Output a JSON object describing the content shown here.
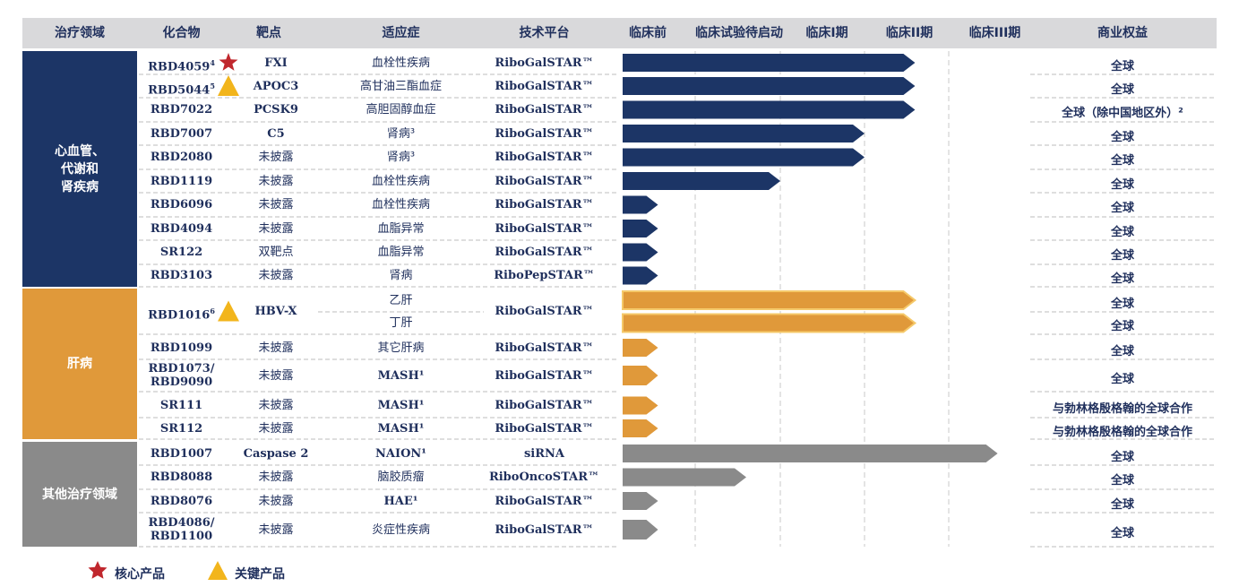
{
  "header": {
    "area": "治疗领域",
    "compound": "化合物",
    "target": "靶点",
    "indication": "适应症",
    "platform": "技术平台",
    "stages": [
      "临床前",
      "临床试验待启动",
      "临床I期",
      "临床II期",
      "临床III期"
    ],
    "rights": "商业权益"
  },
  "areas": [
    {
      "label": "心血管、\n代谢和\n肾疾病",
      "color": "#1c3566"
    },
    {
      "label": "肝病",
      "color": "#e0993a"
    },
    {
      "label": "其他治疗领域",
      "color": "#8a8a8a"
    }
  ],
  "stage_levels": {
    "preclinical": 1,
    "ind_ready": 2,
    "phase1": 3,
    "phase2": 4,
    "phase3": 5
  },
  "rows": [
    {
      "compound": "RBD4059",
      "sup": "4",
      "marker": "star",
      "target": "FXI",
      "indication": "血栓性疾病",
      "platform": "RiboGalSTAR™",
      "stage": 3.6,
      "rights": "全球",
      "area": 0
    },
    {
      "compound": "RBD5044",
      "sup": "5",
      "marker": "triangle",
      "target": "APOC3",
      "indication": "高甘油三酯血症",
      "platform": "RiboGalSTAR™",
      "stage": 3.6,
      "rights": "全球",
      "area": 0
    },
    {
      "compound": "RBD7022",
      "sup": "",
      "marker": "",
      "target": "PCSK9",
      "indication": "高胆固醇血症",
      "platform": "RiboGalSTAR™",
      "stage": 3.6,
      "rights": "全球（除中国地区外）²",
      "area": 0
    },
    {
      "compound": "RBD7007",
      "sup": "",
      "marker": "",
      "target": "C5",
      "indication": "肾病³",
      "platform": "RiboGalSTAR™",
      "stage": 3.0,
      "rights": "全球",
      "area": 0
    },
    {
      "compound": "RBD2080",
      "sup": "",
      "marker": "",
      "target": "未披露",
      "indication": "肾病³",
      "platform": "RiboGalSTAR™",
      "stage": 3.0,
      "rights": "全球",
      "area": 0
    },
    {
      "compound": "RBD1119",
      "sup": "",
      "marker": "",
      "target": "未披露",
      "indication": "血栓性疾病",
      "platform": "RiboGalSTAR™",
      "stage": 2.0,
      "rights": "全球",
      "area": 0
    },
    {
      "compound": "RBD6096",
      "sup": "",
      "marker": "",
      "target": "未披露",
      "indication": "血栓性疾病",
      "platform": "RiboGalSTAR™",
      "stage": 0.5,
      "rights": "全球",
      "area": 0
    },
    {
      "compound": "RBD4094",
      "sup": "",
      "marker": "",
      "target": "未披露",
      "indication": "血脂异常",
      "platform": "RiboGalSTAR™",
      "stage": 0.5,
      "rights": "全球",
      "area": 0
    },
    {
      "compound": "SR122",
      "sup": "",
      "marker": "",
      "target": "双靶点",
      "indication": "血脂异常",
      "platform": "RiboGalSTAR™",
      "stage": 0.5,
      "rights": "全球",
      "area": 0
    },
    {
      "compound": "RBD3103",
      "sup": "",
      "marker": "",
      "target": "未披露",
      "indication": "肾病",
      "platform": "RiboPepSTAR™",
      "stage": 0.5,
      "rights": "全球",
      "area": 0
    },
    {
      "compound": "RBD1016",
      "sup": "6",
      "marker": "triangle",
      "target": "HBV-X",
      "indication": "乙肝",
      "platform": "RiboGalSTAR™",
      "stage": 3.6,
      "rights": "全球",
      "area": 1,
      "merge_start": true
    },
    {
      "compound": "",
      "sup": "",
      "marker": "",
      "target": "",
      "indication": "丁肝",
      "platform": "",
      "stage": 3.6,
      "rights": "全球",
      "area": 1,
      "merge_end": true
    },
    {
      "compound": "RBD1099",
      "sup": "",
      "marker": "",
      "target": "未披露",
      "indication": "其它肝病",
      "platform": "RiboGalSTAR™",
      "stage": 0.5,
      "rights": "全球",
      "area": 1
    },
    {
      "compound": "RBD1073/\nRBD9090",
      "sup": "",
      "marker": "",
      "target": "未披露",
      "indication": "MASH¹",
      "platform": "RiboGalSTAR™",
      "stage": 0.5,
      "rights": "全球",
      "area": 1,
      "tall": true
    },
    {
      "compound": "SR111",
      "sup": "",
      "marker": "",
      "target": "未披露",
      "indication": "MASH¹",
      "platform": "RiboGalSTAR™",
      "stage": 0.5,
      "rights": "与勃林格殷格翰的全球合作",
      "area": 1
    },
    {
      "compound": "SR112",
      "sup": "",
      "marker": "",
      "target": "未披露",
      "indication": "MASH¹",
      "platform": "RiboGalSTAR™",
      "stage": 0.5,
      "rights": "与勃林格殷格翰的全球合作",
      "area": 1
    },
    {
      "compound": "RBD1007",
      "sup": "",
      "marker": "",
      "target": "Caspase 2",
      "indication": "NAION¹",
      "platform": "siRNA",
      "stage": 4.6,
      "rights": "全球",
      "area": 2
    },
    {
      "compound": "RBD8088",
      "sup": "",
      "marker": "",
      "target": "未披露",
      "indication": "脑胶质瘤",
      "platform": "RiboOncoSTAR™",
      "stage": 1.6,
      "rights": "全球",
      "area": 2
    },
    {
      "compound": "RBD8076",
      "sup": "",
      "marker": "",
      "target": "未披露",
      "indication": "HAE¹",
      "platform": "RiboGalSTAR™",
      "stage": 0.5,
      "rights": "全球",
      "area": 2
    },
    {
      "compound": "RBD4086/\nRBD1100",
      "sup": "",
      "marker": "",
      "target": "未披露",
      "indication": "炎症性疾病",
      "platform": "RiboGalSTAR™",
      "stage": 0.5,
      "rights": "全球",
      "area": 2,
      "tall": true
    }
  ],
  "legend": [
    {
      "marker": "star",
      "label": "核心产品",
      "color": "#c0272d"
    },
    {
      "marker": "triangle",
      "label": "关键产品",
      "color": "#f2b51c"
    }
  ]
}
